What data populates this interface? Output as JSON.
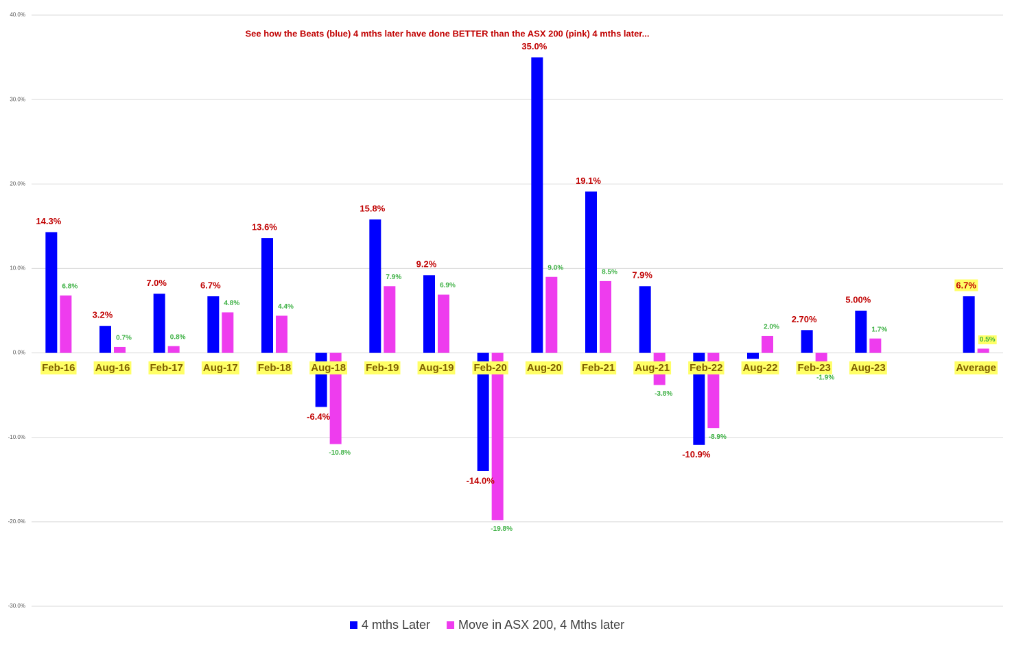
{
  "chart_data": {
    "type": "bar",
    "annotation": "See how the Beats (blue) 4 mths later have done BETTER than the ASX 200  (pink) 4 mths later...",
    "categories": [
      "Feb-16",
      "Aug-16",
      "Feb-17",
      "Aug-17",
      "Feb-18",
      "Aug-18",
      "Feb-19",
      "Aug-19",
      "Feb-20",
      "Aug-20",
      "Feb-21",
      "Aug-21",
      "Feb-22",
      "Aug-22",
      "Feb-23",
      "Aug-23",
      null,
      "Average"
    ],
    "series": [
      {
        "name": "4 mths Later",
        "color": "#0000ff",
        "values": [
          14.3,
          3.2,
          7.0,
          6.7,
          13.6,
          -6.4,
          15.8,
          9.2,
          -14.0,
          35.0,
          19.1,
          7.9,
          -10.9,
          -0.7,
          2.7,
          5.0,
          null,
          6.7
        ],
        "value_labels": [
          "14.3%",
          "3.2%",
          "7.0%",
          "6.7%",
          "13.6%",
          "-6.4%",
          "15.8%",
          "9.2%",
          "-14.0%",
          "35.0%",
          "19.1%",
          "7.9%",
          "-10.9%",
          null,
          "2.70%",
          "5.00%",
          null,
          "6.7%"
        ]
      },
      {
        "name": "Move in ASX 200,  4 Mths later",
        "color": "#ee3cee",
        "values": [
          6.8,
          0.7,
          0.8,
          4.8,
          4.4,
          -10.8,
          7.9,
          6.9,
          -19.8,
          9.0,
          8.5,
          -3.8,
          -8.9,
          2.0,
          -1.9,
          1.7,
          null,
          0.5
        ],
        "value_labels": [
          "6.8%",
          "0.7%",
          "0.8%",
          "4.8%",
          "4.4%",
          "-10.8%",
          "7.9%",
          "6.9%",
          "-19.8%",
          "9.0%",
          "8.5%",
          "-3.8%",
          "-8.9%",
          "2.0%",
          "-1.9%",
          "1.7%",
          null,
          "0.5%"
        ]
      }
    ],
    "ylim": [
      -30,
      40
    ],
    "yticks": [
      {
        "value": -30,
        "label": "-30.0%"
      },
      {
        "value": -20,
        "label": "-20.0%"
      },
      {
        "value": -10,
        "label": "-10.0%"
      },
      {
        "value": 0,
        "label": "0.0%"
      },
      {
        "value": 10,
        "label": "10.0%"
      },
      {
        "value": 20,
        "label": "20.0%"
      },
      {
        "value": 30,
        "label": "30.0%"
      },
      {
        "value": 40,
        "label": "40.0%"
      }
    ],
    "grid": true,
    "legend": "bottom"
  }
}
